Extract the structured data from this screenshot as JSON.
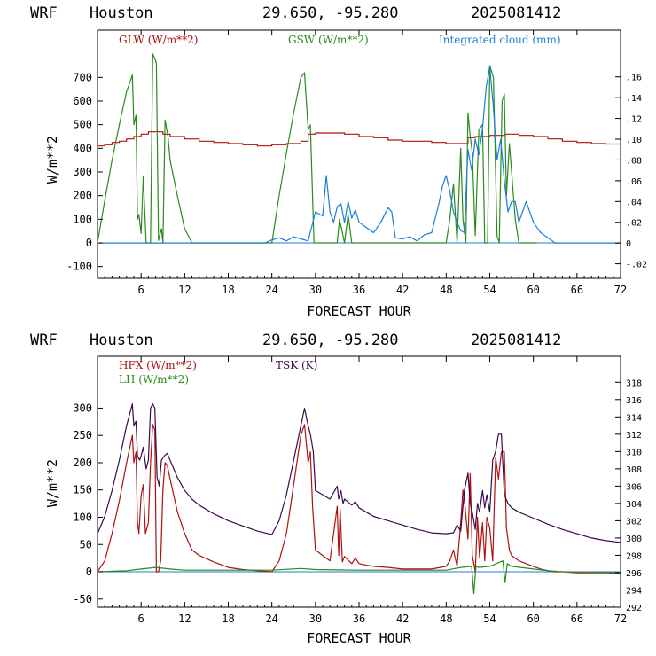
{
  "header": {
    "model": "WRF",
    "location": "Houston",
    "coords": "29.650, -95.280",
    "init_time": "2025081412"
  },
  "colors": {
    "red": "#b01010",
    "green": "#2a8a1e",
    "blue": "#1a7fd8",
    "purple": "#3c0a4a"
  },
  "chart_data": [
    {
      "type": "line",
      "xlabel": "FORECAST HOUR",
      "ylabel": "W/m**2",
      "xlim": [
        0,
        72
      ],
      "ylim": [
        -150,
        900
      ],
      "x_ticks": [
        6,
        12,
        18,
        24,
        30,
        36,
        42,
        48,
        54,
        60,
        66,
        72
      ],
      "y_ticks": [
        -100,
        0,
        100,
        200,
        300,
        400,
        500,
        600,
        700
      ],
      "y2lim": [
        -0.034,
        0.205
      ],
      "y2_ticks": [
        -0.02,
        0,
        0.02,
        0.04,
        0.06,
        0.08,
        0.1,
        0.12,
        0.14,
        0.16
      ],
      "y2_tick_labels": [
        "-.02",
        "0",
        ".02",
        ".04",
        ".06",
        ".08",
        ".10",
        ".12",
        ".14",
        ".16"
      ],
      "series": [
        {
          "name": "GLW (W/m**2)",
          "color": "red",
          "axis": "left",
          "step": true,
          "x": [
            0,
            1,
            2,
            3,
            4,
            5,
            6,
            7,
            8,
            9,
            10,
            12,
            14,
            16,
            18,
            20,
            22,
            24,
            26,
            28,
            29,
            30,
            32,
            34,
            36,
            38,
            40,
            42,
            44,
            46,
            48,
            50,
            51,
            52,
            53,
            54,
            55,
            56,
            57,
            58,
            60,
            62,
            64,
            66,
            68,
            70,
            72
          ],
          "values": [
            410,
            415,
            425,
            430,
            440,
            450,
            460,
            470,
            470,
            460,
            450,
            440,
            430,
            425,
            420,
            415,
            410,
            415,
            420,
            430,
            460,
            465,
            465,
            460,
            450,
            445,
            435,
            430,
            430,
            425,
            420,
            420,
            445,
            450,
            450,
            455,
            455,
            460,
            460,
            455,
            450,
            440,
            430,
            425,
            420,
            418,
            415
          ]
        },
        {
          "name": "GSW (W/m**2)",
          "color": "green",
          "axis": "left",
          "x": [
            0,
            1,
            2,
            3,
            4,
            4.8,
            5,
            5.3,
            5.5,
            5.7,
            6,
            6.3,
            6.7,
            7,
            7.3,
            7.6,
            7.9,
            8.1,
            8.4,
            8.8,
            9.0,
            9.3,
            9.7,
            10,
            11,
            12,
            13,
            14,
            24,
            25,
            26,
            27,
            28,
            28.5,
            29,
            29.3,
            29.8,
            30,
            31,
            32,
            33,
            33.3,
            33.6,
            34,
            34.5,
            35,
            36,
            37,
            38,
            48,
            48.5,
            49,
            49.5,
            50,
            50.3,
            50.7,
            51,
            51.3,
            51.6,
            52,
            52.5,
            53,
            53.3,
            53.7,
            54,
            54.5,
            55,
            55.3,
            55.7,
            56,
            56.3,
            56.7,
            57,
            57.5,
            58,
            59,
            60,
            60.5
          ],
          "values": [
            0,
            180,
            350,
            500,
            640,
            710,
            500,
            540,
            100,
            120,
            40,
            280,
            0,
            0,
            0,
            800,
            780,
            760,
            10,
            60,
            0,
            520,
            450,
            350,
            200,
            60,
            0,
            0,
            0,
            200,
            380,
            550,
            700,
            720,
            480,
            500,
            0,
            0,
            0,
            0,
            0,
            100,
            60,
            0,
            120,
            0,
            0,
            0,
            0,
            0,
            100,
            250,
            0,
            400,
            100,
            0,
            550,
            450,
            380,
            30,
            480,
            500,
            0,
            0,
            750,
            700,
            30,
            0,
            600,
            630,
            200,
            420,
            300,
            100,
            0,
            0,
            0,
            0
          ]
        },
        {
          "name": "Integrated cloud (mm)",
          "color": "blue",
          "axis": "right",
          "x": [
            0,
            23,
            24,
            25,
            26,
            27,
            28,
            29,
            30,
            31,
            31.5,
            32,
            32.5,
            33,
            33.5,
            34,
            34.5,
            35,
            35.5,
            36,
            37,
            38,
            39,
            40,
            40.5,
            41,
            42,
            43,
            44,
            45,
            46,
            47,
            47.5,
            48,
            48.5,
            49,
            49.5,
            50,
            50.5,
            51,
            51.5,
            52,
            52.5,
            53,
            53.5,
            54,
            54.5,
            55,
            55.5,
            56,
            56.5,
            57,
            57.5,
            58,
            58.5,
            59,
            60,
            61,
            62,
            63,
            72
          ],
          "values": [
            0,
            0,
            0.003,
            0.005,
            0.002,
            0.006,
            0.004,
            0.002,
            0.03,
            0.026,
            0.065,
            0.03,
            0.02,
            0.035,
            0.038,
            0.02,
            0.04,
            0.024,
            0.032,
            0.02,
            0.015,
            0.01,
            0.02,
            0.034,
            0.03,
            0.005,
            0.004,
            0.006,
            0.002,
            0.008,
            0.01,
            0.038,
            0.055,
            0.065,
            0.05,
            0.03,
            0.02,
            0.012,
            0.01,
            0.09,
            0.07,
            0.1,
            0.085,
            0.11,
            0.15,
            0.17,
            0.13,
            0.08,
            0.1,
            0.06,
            0.03,
            0.04,
            0.04,
            0.02,
            0.03,
            0.04,
            0.02,
            0.01,
            0.005,
            0,
            0
          ]
        }
      ],
      "legend": [
        "GLW (W/m**2)",
        "GSW (W/m**2)",
        "Integrated cloud (mm)"
      ],
      "legend_colors": [
        "red",
        "green",
        "blue"
      ],
      "grid": false
    },
    {
      "type": "line",
      "xlabel": "FORECAST HOUR",
      "ylabel": "W/m**2",
      "xlim": [
        0,
        72
      ],
      "ylim": [
        -65,
        395
      ],
      "x_ticks": [
        6,
        12,
        18,
        24,
        30,
        36,
        42,
        48,
        54,
        60,
        66,
        72
      ],
      "y_ticks": [
        -50,
        0,
        50,
        100,
        150,
        200,
        250,
        300
      ],
      "y2lim": [
        292,
        321
      ],
      "y2_ticks": [
        292,
        294,
        296,
        298,
        300,
        302,
        304,
        306,
        308,
        310,
        312,
        314,
        316,
        318
      ],
      "y2_tick_labels": [
        "292",
        "294",
        "296",
        "298",
        "300",
        "302",
        "304",
        "306",
        "308",
        "310",
        "312",
        "314",
        "316",
        "318"
      ],
      "series": [
        {
          "name": "HFX (W/m**2)",
          "color": "red",
          "axis": "left",
          "x": [
            0,
            1,
            2,
            3,
            4,
            4.8,
            5,
            5.3,
            5.5,
            5.7,
            6,
            6.3,
            6.6,
            7,
            7.3,
            7.6,
            7.9,
            8.1,
            8.4,
            8.7,
            9.0,
            9.3,
            9.6,
            10,
            11,
            12,
            13,
            14,
            16,
            18,
            20,
            22,
            24,
            25,
            26,
            27,
            28,
            28.5,
            29,
            29.3,
            29.6,
            30,
            31,
            32,
            33,
            33.2,
            33.4,
            33.7,
            34,
            35,
            35.5,
            36,
            37,
            38,
            40,
            42,
            44,
            46,
            48,
            48.5,
            49,
            49.5,
            50,
            50.3,
            50.6,
            51,
            51.3,
            51.6,
            52,
            52.3,
            52.6,
            53,
            53.3,
            53.6,
            54,
            54.4,
            54.8,
            55.2,
            55.6,
            56,
            56.3,
            56.7,
            57,
            57.5,
            58,
            59,
            60,
            61,
            62,
            63,
            64,
            66,
            68,
            70,
            72
          ],
          "values": [
            0,
            20,
            70,
            130,
            200,
            250,
            200,
            220,
            90,
            70,
            140,
            160,
            70,
            90,
            200,
            270,
            260,
            0,
            0,
            20,
            150,
            200,
            195,
            170,
            110,
            70,
            40,
            30,
            18,
            8,
            4,
            2,
            0,
            20,
            70,
            160,
            250,
            270,
            200,
            220,
            120,
            40,
            30,
            20,
            120,
            30,
            115,
            18,
            28,
            15,
            25,
            15,
            12,
            10,
            8,
            5,
            5,
            5,
            10,
            20,
            40,
            10,
            90,
            150,
            120,
            60,
            180,
            30,
            0,
            100,
            25,
            90,
            20,
            100,
            80,
            20,
            210,
            170,
            220,
            220,
            80,
            40,
            30,
            25,
            20,
            15,
            10,
            5,
            2,
            0,
            0,
            -2,
            -2,
            -2,
            -3
          ]
        },
        {
          "name": "LH (W/m**2)",
          "color": "green",
          "axis": "left",
          "x": [
            0,
            4,
            6,
            8,
            10,
            12,
            24,
            28,
            30,
            36,
            48,
            50,
            51.5,
            51.8,
            52.1,
            52.5,
            54,
            55.8,
            56.1,
            56.4,
            57,
            60,
            62,
            64,
            72
          ],
          "values": [
            0,
            2,
            5,
            8,
            5,
            3,
            3,
            6,
            4,
            3,
            3,
            8,
            10,
            -40,
            10,
            8,
            10,
            20,
            -20,
            15,
            10,
            5,
            2,
            0,
            -2
          ]
        },
        {
          "name": "TSK (K)",
          "color": "purple",
          "axis": "right",
          "x": [
            0,
            1,
            2,
            3,
            4,
            4.8,
            5,
            5.3,
            5.5,
            5.8,
            6,
            6.3,
            6.7,
            7,
            7.3,
            7.6,
            7.9,
            8.2,
            8.5,
            8.8,
            9.2,
            9.6,
            10,
            11,
            12,
            13,
            14,
            16,
            18,
            20,
            22,
            24,
            25,
            26,
            27,
            28,
            28.5,
            29,
            29.3,
            29.7,
            30,
            31,
            32,
            33,
            33.2,
            33.5,
            33.8,
            34,
            35,
            35.5,
            36,
            37,
            38,
            40,
            42,
            44,
            46,
            48,
            49,
            49.5,
            50,
            50.5,
            51,
            51.3,
            51.6,
            52,
            52.3,
            52.6,
            53,
            53.3,
            53.6,
            54,
            54.4,
            54.8,
            55.2,
            55.6,
            56,
            56.5,
            57,
            58,
            60,
            62,
            64,
            66,
            68,
            70,
            72
          ],
          "values": [
            300.5,
            302.5,
            305.5,
            309,
            313,
            315.5,
            313,
            313.5,
            309.5,
            309,
            309.5,
            310.5,
            308,
            309,
            315,
            315.5,
            315,
            307,
            306,
            309,
            309.5,
            309.8,
            309,
            307,
            305.5,
            304.5,
            303.8,
            302.8,
            302,
            301.4,
            300.8,
            300.4,
            302,
            305,
            309,
            313,
            315,
            313,
            312,
            310,
            305.5,
            305,
            304.5,
            306,
            304.5,
            305.5,
            304,
            304.5,
            303.8,
            304.2,
            303.5,
            303,
            302.5,
            302,
            301.5,
            301,
            300.6,
            300.5,
            300.6,
            301.5,
            300.8,
            305.5,
            307.5,
            304,
            303,
            301,
            304,
            303,
            305.5,
            303.5,
            305,
            303,
            309,
            310,
            312,
            312,
            305,
            304,
            303.5,
            303,
            302.3,
            301.6,
            301,
            300.5,
            300,
            299.7,
            299.5
          ]
        }
      ],
      "legend": [
        "HFX (W/m**2)",
        "LH  (W/m**2)",
        "TSK (K)"
      ],
      "legend_colors": [
        "red",
        "green",
        "purple"
      ],
      "grid": false
    }
  ]
}
